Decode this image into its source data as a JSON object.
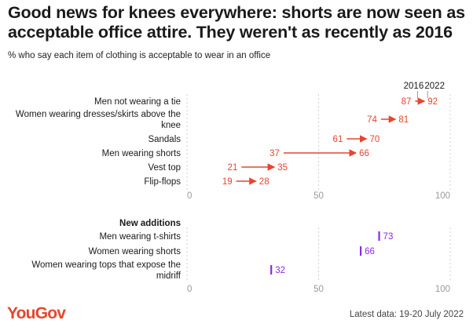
{
  "title": "Good news for knees everywhere: shorts are now seen as acceptable office attire. They weren't as recently as 2016",
  "subtitle": "% who say each item of clothing is acceptable to wear in an office",
  "footer": {
    "logo": "YouGov",
    "note": "Latest data: 19-20 July 2022"
  },
  "colors": {
    "change": "#e4472f",
    "new": "#8a2be2",
    "axis": "#9a9a9a",
    "grid": "#cfcfcf",
    "text": "#1a1a1a"
  },
  "chart_data": [
    {
      "type": "dumbbell",
      "legend": [
        "2016",
        "2022"
      ],
      "xlim": [
        0,
        100
      ],
      "xticks": [
        0,
        50,
        100
      ],
      "categories": [
        "Men not wearing a tie",
        "Women wearing dresses/skirts above the knee",
        "Sandals",
        "Men wearing shorts",
        "Vest top",
        "Flip-flops"
      ],
      "series": [
        {
          "name": "2016",
          "values": [
            87,
            74,
            61,
            37,
            21,
            19
          ]
        },
        {
          "name": "2022",
          "values": [
            92,
            81,
            70,
            66,
            35,
            28
          ]
        }
      ]
    },
    {
      "type": "scatter",
      "section_title": "New additions",
      "xlim": [
        0,
        100
      ],
      "xticks": [
        0,
        50,
        100
      ],
      "categories": [
        "Men wearing t-shirts",
        "Women wearing shorts",
        "Women wearing tops that expose the midriff"
      ],
      "series": [
        {
          "name": "2022",
          "values": [
            73,
            66,
            32
          ]
        }
      ]
    }
  ]
}
